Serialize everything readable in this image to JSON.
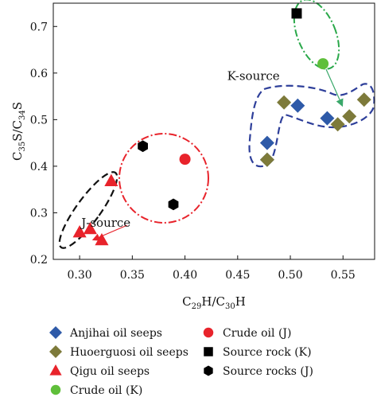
{
  "chart_data": {
    "type": "scatter",
    "xlabel": {
      "main": "C",
      "sub1": "29",
      "mid": "H/C",
      "sub2": "30",
      "tail": "H"
    },
    "ylabel": {
      "main": "C",
      "sub1": "35",
      "mid": "S/C",
      "sub2": "34",
      "tail": "S"
    },
    "xlim": [
      0.275,
      0.58
    ],
    "ylim": [
      0.2,
      0.75
    ],
    "xticks": [
      0.3,
      0.35,
      0.4,
      0.45,
      0.5,
      0.55
    ],
    "xtick_labels": [
      "0.30",
      "0.35",
      "0.40",
      "0.45",
      "0.50",
      "0.55"
    ],
    "yticks": [
      0.2,
      0.3,
      0.4,
      0.5,
      0.6,
      0.7
    ],
    "ytick_labels": [
      "0.2",
      "0.3",
      "0.4",
      "0.5",
      "0.6",
      "0.7"
    ],
    "grid": false,
    "legend_position": "bottom",
    "series": [
      {
        "name": "Anjihai oil seeps",
        "marker": "diamond",
        "color": "#2e5aa8",
        "x": [
          0.478,
          0.478,
          0.507,
          0.535
        ],
        "y": [
          0.45,
          0.414,
          0.53,
          0.503
        ]
      },
      {
        "name": "Huoerguosi oil seeps",
        "marker": "diamond",
        "color": "#7d7a3a",
        "x": [
          0.478,
          0.494,
          0.545,
          0.556,
          0.57
        ],
        "y": [
          0.414,
          0.537,
          0.49,
          0.507,
          0.543
        ]
      },
      {
        "name": "Qigu oil seeps",
        "marker": "triangle",
        "color": "#e8232b",
        "x": [
          0.3,
          0.31,
          0.321,
          0.33
        ],
        "y": [
          0.258,
          0.265,
          0.241,
          0.368
        ]
      },
      {
        "name": "Crude oil (K)",
        "marker": "circle",
        "color": "#5fbf3a",
        "x": [
          0.531
        ],
        "y": [
          0.62
        ]
      },
      {
        "name": "Crude oil (J)",
        "marker": "circle",
        "color": "#e8232b",
        "x": [
          0.4
        ],
        "y": [
          0.415
        ]
      },
      {
        "name": "Source rock (K)",
        "marker": "square",
        "color": "#000000",
        "x": [
          0.506
        ],
        "y": [
          0.728
        ]
      },
      {
        "name": "Source rocks (J)",
        "marker": "hexagon",
        "color": "#000000",
        "x": [
          0.36,
          0.389
        ],
        "y": [
          0.443,
          0.318
        ]
      }
    ],
    "annotations": [
      {
        "text": "K-source",
        "x": 0.465,
        "y": 0.585
      },
      {
        "text": "J-source",
        "x": 0.325,
        "y": 0.27
      }
    ]
  }
}
